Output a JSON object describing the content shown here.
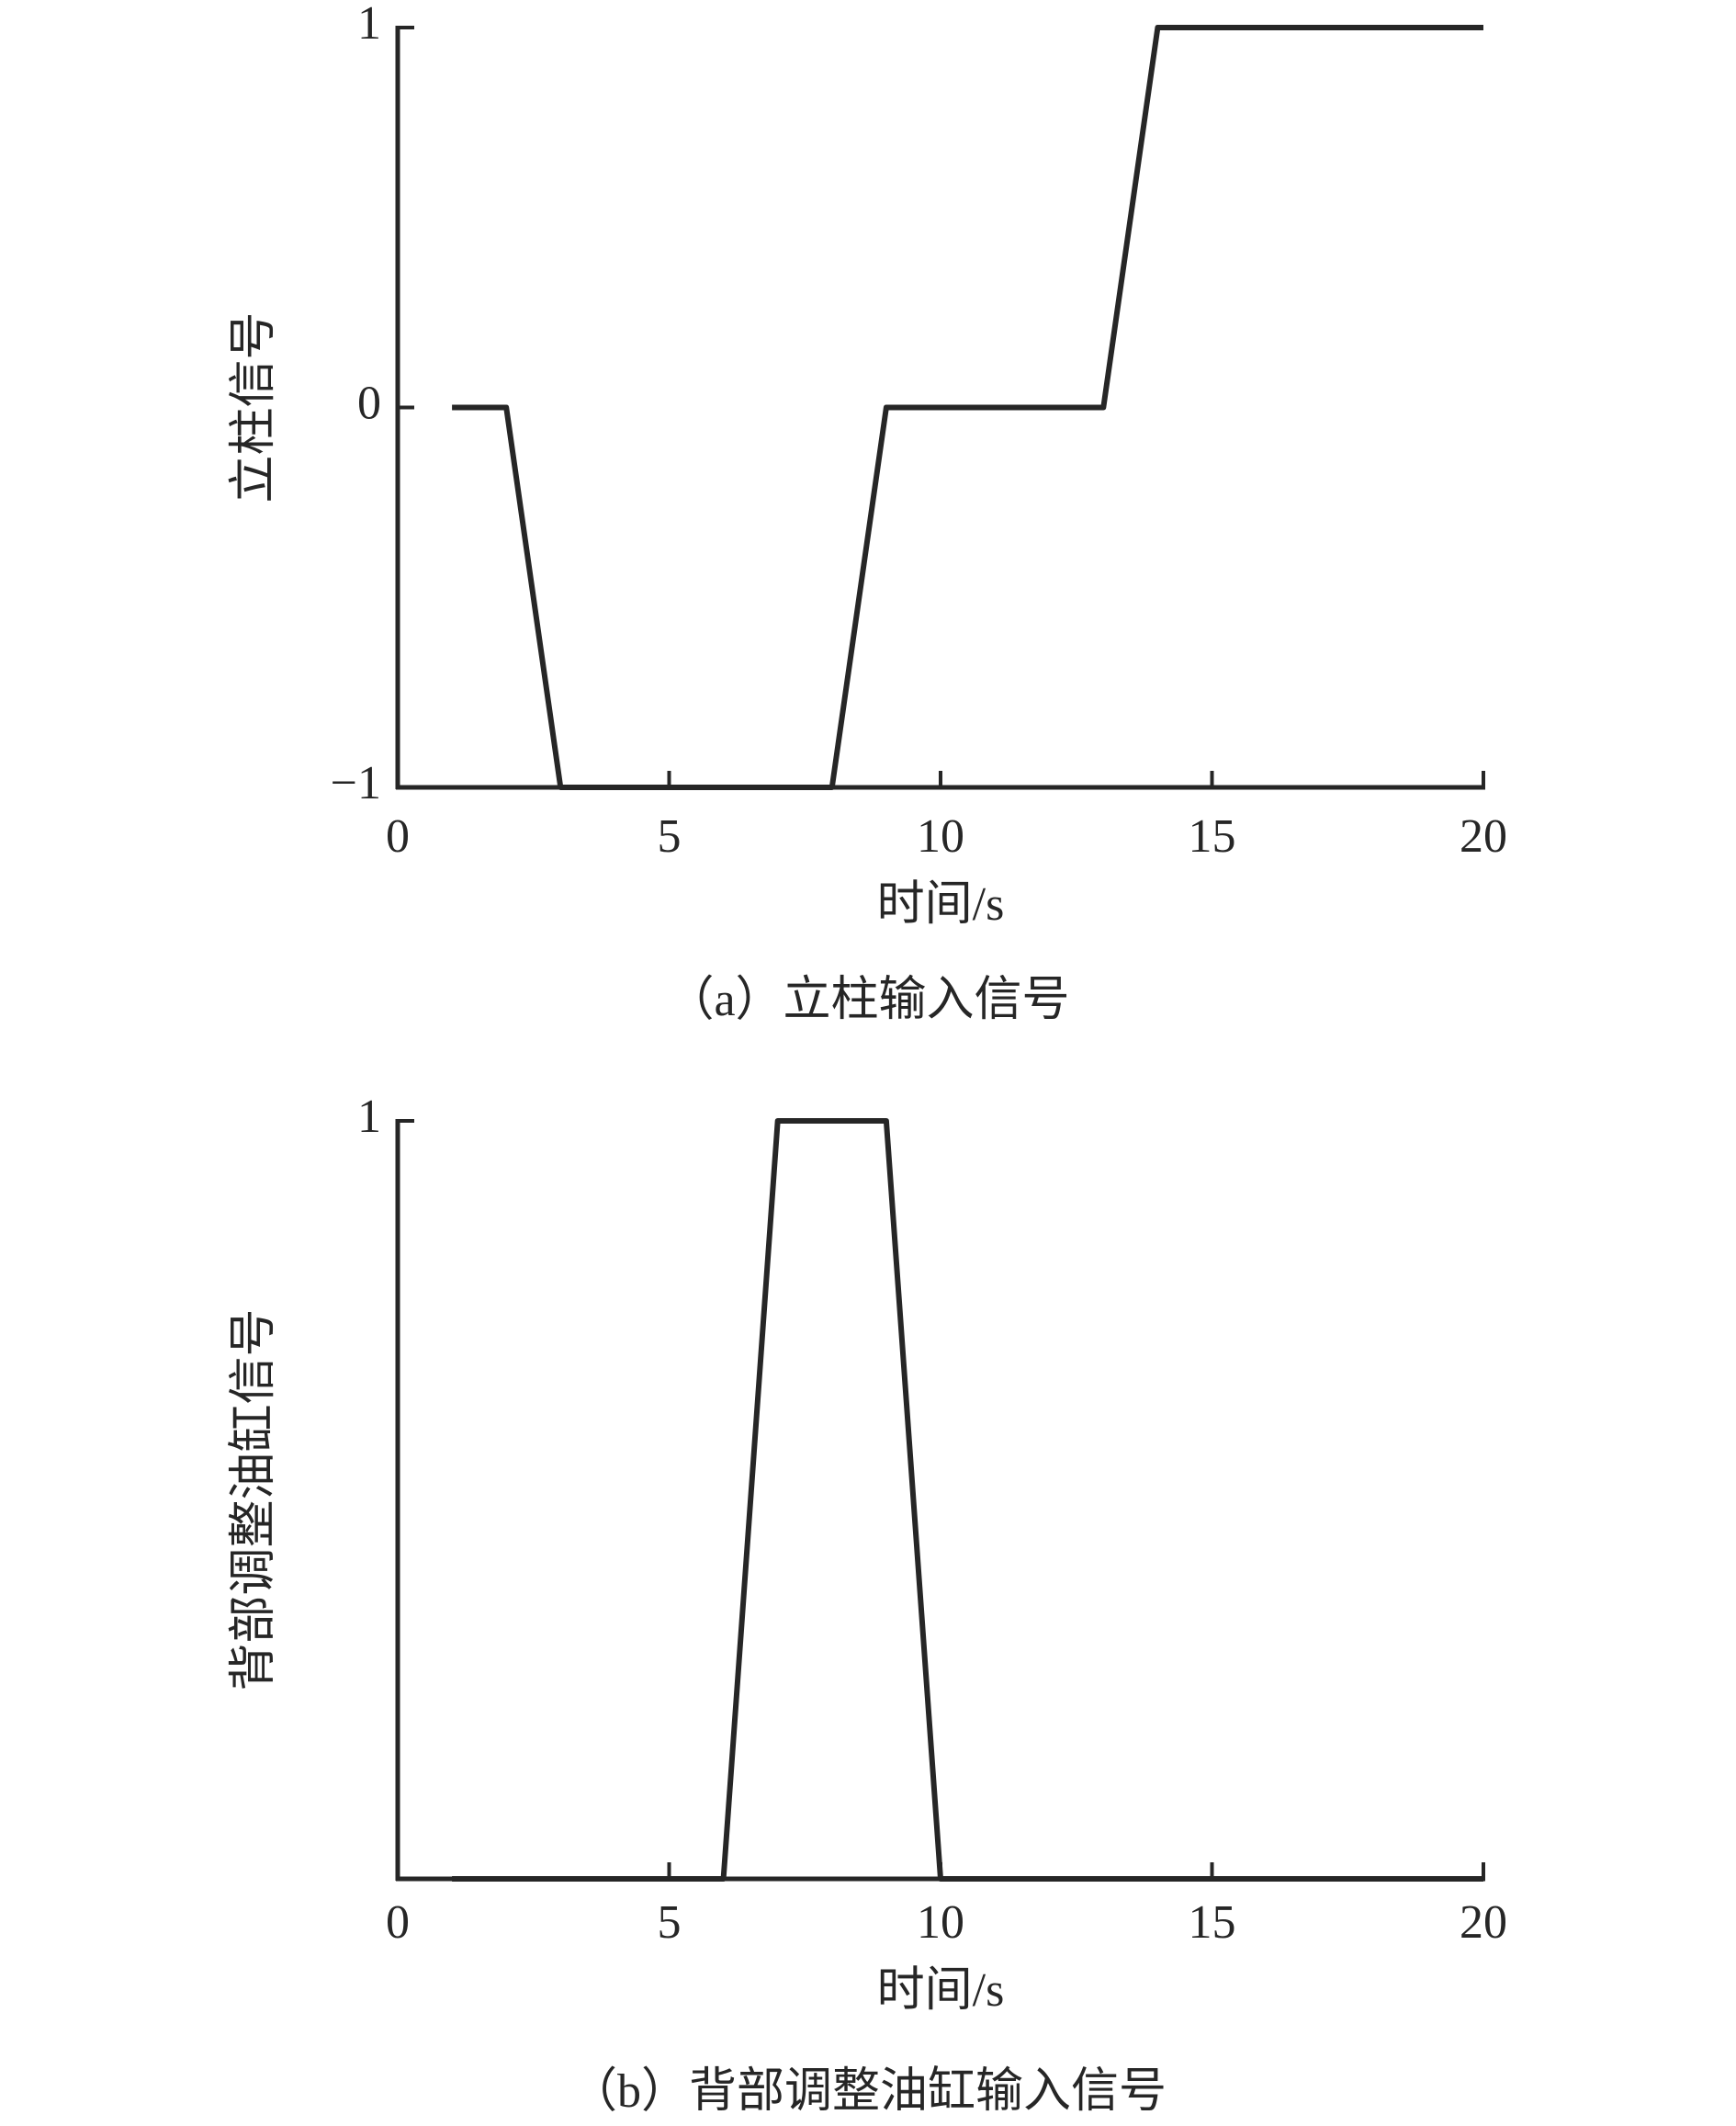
{
  "chart_data": [
    {
      "type": "line",
      "caption": "（a）立柱输入信号",
      "ylabel": "立柱信号",
      "xlabel": "时间/s",
      "x": [
        1,
        2,
        3,
        8,
        9,
        13,
        14,
        20
      ],
      "series": [
        {
          "color": "#262626",
          "values": [
            0,
            0,
            -1,
            -1,
            0,
            0,
            1,
            1
          ]
        }
      ],
      "xlim": [
        0,
        20
      ],
      "xticks": [
        0,
        5,
        10,
        15,
        20
      ],
      "ylim": [
        -1,
        1
      ],
      "yticks": [
        {
          "value": -1,
          "label": "−1"
        },
        0,
        1
      ]
    },
    {
      "type": "line",
      "caption": "（b）背部调整油缸输入信号",
      "ylabel": "背部调整油缸信号",
      "xlabel": "时间/s",
      "x": [
        1,
        6,
        7,
        9,
        10,
        20
      ],
      "series": [
        {
          "color": "#262626",
          "values": [
            0,
            0,
            1,
            1,
            0,
            0
          ]
        }
      ],
      "xlim": [
        0,
        20
      ],
      "xticks": [
        0,
        5,
        10,
        15,
        20
      ],
      "ylim": [
        0,
        1
      ],
      "yticks": [
        1
      ]
    }
  ]
}
